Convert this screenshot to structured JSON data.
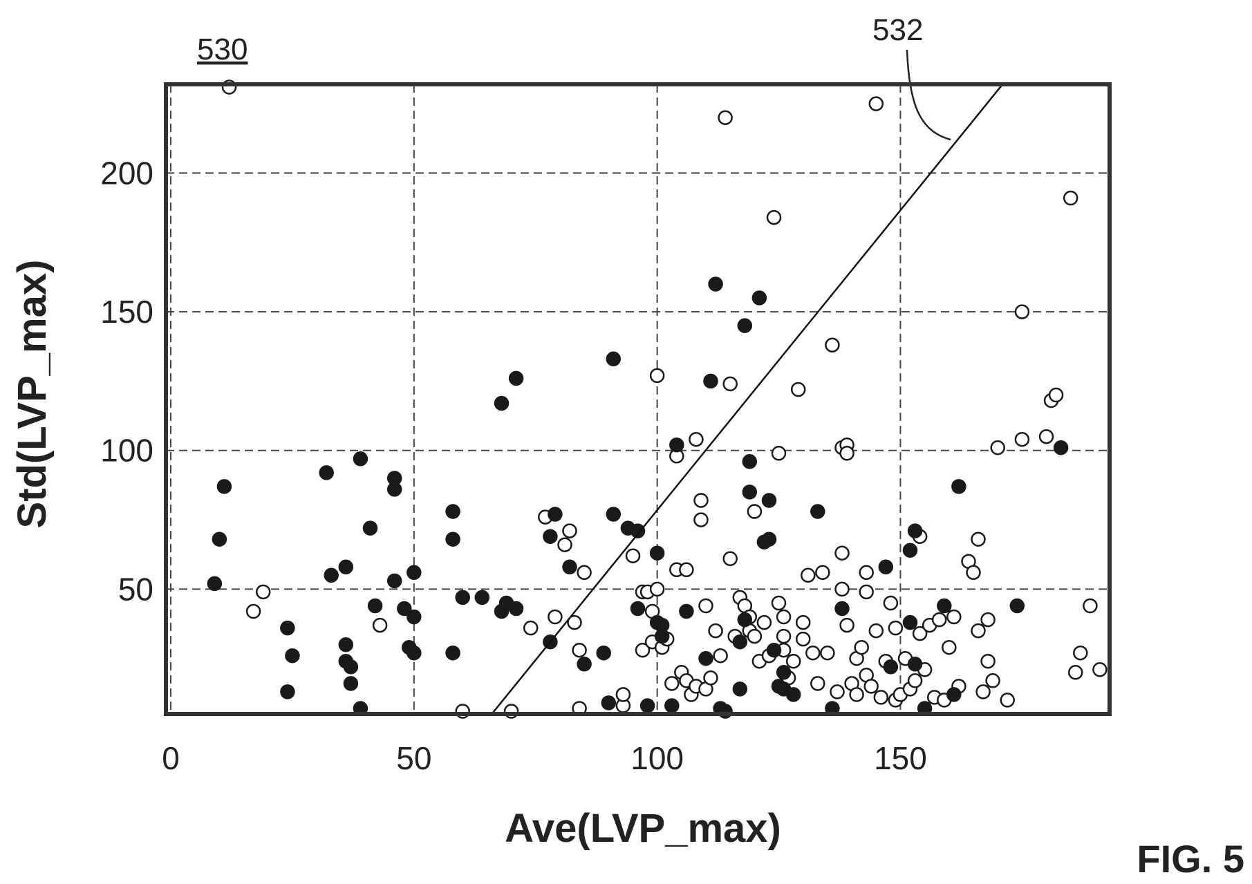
{
  "figure_ref": "530",
  "line_ref": "532",
  "fig_label": "FIG. 5",
  "chart_data": {
    "type": "scatter",
    "xlabel": "Ave(LVP_max)",
    "ylabel": "Std(LVP_max)",
    "xlim": [
      -1,
      193
    ],
    "ylim": [
      5,
      232
    ],
    "xticks": [
      0,
      50,
      100,
      150
    ],
    "yticks": [
      50,
      100,
      150,
      200
    ],
    "grid": true,
    "decision_line": [
      [
        66,
        5
      ],
      [
        171,
        232
      ]
    ],
    "series": [
      {
        "marker": "filled",
        "points": [
          [
            9,
            52
          ],
          [
            10,
            68
          ],
          [
            11,
            87
          ],
          [
            24,
            36
          ],
          [
            24,
            13
          ],
          [
            25,
            26
          ],
          [
            32,
            92
          ],
          [
            33,
            55
          ],
          [
            36,
            58
          ],
          [
            36,
            30
          ],
          [
            36,
            24
          ],
          [
            37,
            22
          ],
          [
            37,
            16
          ],
          [
            39,
            97
          ],
          [
            39,
            7
          ],
          [
            41,
            72
          ],
          [
            42,
            44
          ],
          [
            46,
            90
          ],
          [
            46,
            86
          ],
          [
            46,
            53
          ],
          [
            48,
            43
          ],
          [
            49,
            29
          ],
          [
            50,
            56
          ],
          [
            50,
            40
          ],
          [
            50,
            27
          ],
          [
            58,
            78
          ],
          [
            58,
            68
          ],
          [
            58,
            27
          ],
          [
            60,
            47
          ],
          [
            64,
            47
          ],
          [
            68,
            117
          ],
          [
            68,
            42
          ],
          [
            69,
            45
          ],
          [
            71,
            126
          ],
          [
            71,
            43
          ],
          [
            78,
            69
          ],
          [
            78,
            31
          ],
          [
            79,
            77
          ],
          [
            82,
            58
          ],
          [
            85,
            23
          ],
          [
            89,
            27
          ],
          [
            90,
            9
          ],
          [
            91,
            133
          ],
          [
            91,
            77
          ],
          [
            94,
            72
          ],
          [
            96,
            71
          ],
          [
            96,
            43
          ],
          [
            98,
            8
          ],
          [
            100,
            63
          ],
          [
            100,
            38
          ],
          [
            101,
            37
          ],
          [
            101,
            33
          ],
          [
            103,
            8
          ],
          [
            104,
            102
          ],
          [
            106,
            42
          ],
          [
            110,
            25
          ],
          [
            111,
            125
          ],
          [
            112,
            160
          ],
          [
            113,
            7
          ],
          [
            114,
            6
          ],
          [
            117,
            14
          ],
          [
            117,
            31
          ],
          [
            118,
            39
          ],
          [
            118,
            145
          ],
          [
            119,
            96
          ],
          [
            119,
            85
          ],
          [
            121,
            155
          ],
          [
            122,
            67
          ],
          [
            123,
            68
          ],
          [
            123,
            82
          ],
          [
            124,
            28
          ],
          [
            125,
            15
          ],
          [
            126,
            14
          ],
          [
            126,
            20
          ],
          [
            128,
            12
          ],
          [
            133,
            78
          ],
          [
            136,
            7
          ],
          [
            138,
            43
          ],
          [
            147,
            58
          ],
          [
            148,
            22
          ],
          [
            152,
            64
          ],
          [
            152,
            38
          ],
          [
            153,
            71
          ],
          [
            153,
            23
          ],
          [
            155,
            7
          ],
          [
            159,
            44
          ],
          [
            161,
            12
          ],
          [
            162,
            87
          ],
          [
            174,
            44
          ],
          [
            183,
            101
          ]
        ]
      },
      {
        "marker": "hollow",
        "points": [
          [
            12,
            231
          ],
          [
            17,
            42
          ],
          [
            19,
            49
          ],
          [
            43,
            37
          ],
          [
            60,
            6
          ],
          [
            70,
            6
          ],
          [
            74,
            36
          ],
          [
            77,
            76
          ],
          [
            79,
            40
          ],
          [
            81,
            66
          ],
          [
            82,
            71
          ],
          [
            83,
            38
          ],
          [
            84,
            28
          ],
          [
            84,
            7
          ],
          [
            85,
            56
          ],
          [
            93,
            8
          ],
          [
            93,
            12
          ],
          [
            95,
            62
          ],
          [
            97,
            49
          ],
          [
            98,
            49
          ],
          [
            97,
            28
          ],
          [
            99,
            31
          ],
          [
            99,
            42
          ],
          [
            100,
            127
          ],
          [
            100,
            50
          ],
          [
            101,
            29
          ],
          [
            102,
            32
          ],
          [
            103,
            16
          ],
          [
            104,
            98
          ],
          [
            104,
            57
          ],
          [
            105,
            20
          ],
          [
            106,
            57
          ],
          [
            106,
            17
          ],
          [
            107,
            12
          ],
          [
            108,
            15
          ],
          [
            108,
            104
          ],
          [
            109,
            82
          ],
          [
            109,
            75
          ],
          [
            110,
            44
          ],
          [
            110,
            14
          ],
          [
            111,
            18
          ],
          [
            112,
            35
          ],
          [
            113,
            26
          ],
          [
            114,
            220
          ],
          [
            115,
            124
          ],
          [
            115,
            61
          ],
          [
            116,
            33
          ],
          [
            117,
            47
          ],
          [
            118,
            44
          ],
          [
            119,
            40
          ],
          [
            119,
            35
          ],
          [
            120,
            78
          ],
          [
            120,
            33
          ],
          [
            121,
            24
          ],
          [
            122,
            38
          ],
          [
            123,
            26
          ],
          [
            124,
            184
          ],
          [
            125,
            99
          ],
          [
            125,
            45
          ],
          [
            126,
            40
          ],
          [
            126,
            33
          ],
          [
            126,
            28
          ],
          [
            127,
            18
          ],
          [
            128,
            24
          ],
          [
            129,
            122
          ],
          [
            130,
            38
          ],
          [
            130,
            32
          ],
          [
            131,
            55
          ],
          [
            132,
            27
          ],
          [
            133,
            16
          ],
          [
            134,
            56
          ],
          [
            135,
            27
          ],
          [
            136,
            138
          ],
          [
            137,
            13
          ],
          [
            138,
            101
          ],
          [
            138,
            63
          ],
          [
            138,
            50
          ],
          [
            139,
            102
          ],
          [
            139,
            99
          ],
          [
            139,
            37
          ],
          [
            140,
            16
          ],
          [
            141,
            12
          ],
          [
            141,
            25
          ],
          [
            142,
            29
          ],
          [
            143,
            56
          ],
          [
            143,
            49
          ],
          [
            143,
            19
          ],
          [
            144,
            15
          ],
          [
            145,
            225
          ],
          [
            145,
            35
          ],
          [
            146,
            11
          ],
          [
            147,
            24
          ],
          [
            148,
            45
          ],
          [
            149,
            36
          ],
          [
            149,
            10
          ],
          [
            150,
            12
          ],
          [
            151,
            25
          ],
          [
            152,
            14
          ],
          [
            153,
            17
          ],
          [
            154,
            69
          ],
          [
            154,
            34
          ],
          [
            155,
            21
          ],
          [
            156,
            37
          ],
          [
            157,
            11
          ],
          [
            158,
            39
          ],
          [
            159,
            10
          ],
          [
            160,
            29
          ],
          [
            161,
            40
          ],
          [
            162,
            15
          ],
          [
            164,
            60
          ],
          [
            165,
            56
          ],
          [
            166,
            68
          ],
          [
            166,
            35
          ],
          [
            167,
            13
          ],
          [
            168,
            39
          ],
          [
            168,
            24
          ],
          [
            169,
            17
          ],
          [
            170,
            101
          ],
          [
            172,
            10
          ],
          [
            175,
            150
          ],
          [
            175,
            104
          ],
          [
            180,
            105
          ],
          [
            181,
            118
          ],
          [
            182,
            120
          ],
          [
            185,
            191
          ],
          [
            186,
            20
          ],
          [
            187,
            27
          ],
          [
            189,
            44
          ],
          [
            191,
            21
          ]
        ]
      }
    ]
  }
}
